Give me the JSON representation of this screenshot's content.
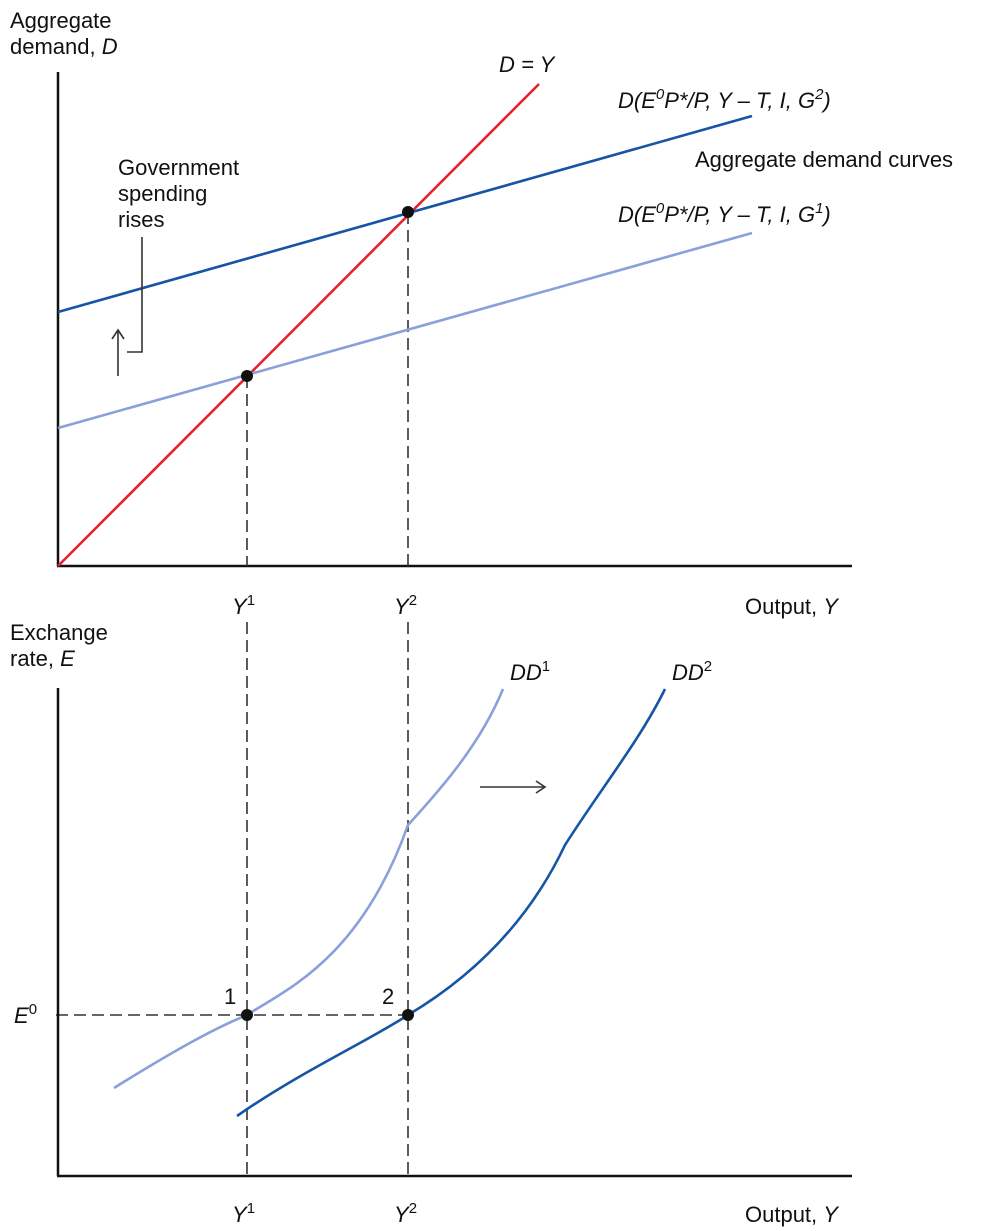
{
  "top_panel": {
    "y_axis_label_line1": "Aggregate",
    "y_axis_label_line2_text": "demand, ",
    "y_axis_label_line2_var": "D",
    "x_axis_label_text": "Output, ",
    "x_axis_label_var": "Y",
    "x_ticks": [
      {
        "base": "Y",
        "sup": "1"
      },
      {
        "base": "Y",
        "sup": "2"
      }
    ],
    "line_dy_label": "D = Y",
    "curve_g2_label": {
      "prefix": "D(E",
      "sup1": "0",
      "mid": "P*/P, Y – T, I, G",
      "sup2": "2",
      "suffix": ")"
    },
    "curve_g1_label": {
      "prefix": "D(E",
      "sup1": "0",
      "mid": "P*/P, Y – T, I, G",
      "sup2": "1",
      "suffix": ")"
    },
    "curves_group_label": "Aggregate demand curves",
    "annotation_lines": [
      "Government",
      "spending",
      "rises"
    ]
  },
  "bottom_panel": {
    "y_axis_label_line1": "Exchange",
    "y_axis_label_line2_text": "rate, ",
    "y_axis_label_line2_var": "E",
    "x_axis_label_text": "Output, ",
    "x_axis_label_var": "Y",
    "x_ticks": [
      {
        "base": "Y",
        "sup": "1"
      },
      {
        "base": "Y",
        "sup": "2"
      }
    ],
    "y_tick": {
      "base": "E",
      "sup": "0"
    },
    "curve_dd1_label": {
      "base": "DD",
      "sup": "1"
    },
    "curve_dd2_label": {
      "base": "DD",
      "sup": "2"
    },
    "point_labels": [
      "1",
      "2"
    ]
  },
  "colors": {
    "line_45deg": "#e8202f",
    "curve_g2": "#1655a6",
    "curve_g1": "#8aa0d8",
    "curve_dd1": "#8aa0d8",
    "curve_dd2": "#1655a6",
    "axis": "#111111",
    "point": "#111111"
  }
}
